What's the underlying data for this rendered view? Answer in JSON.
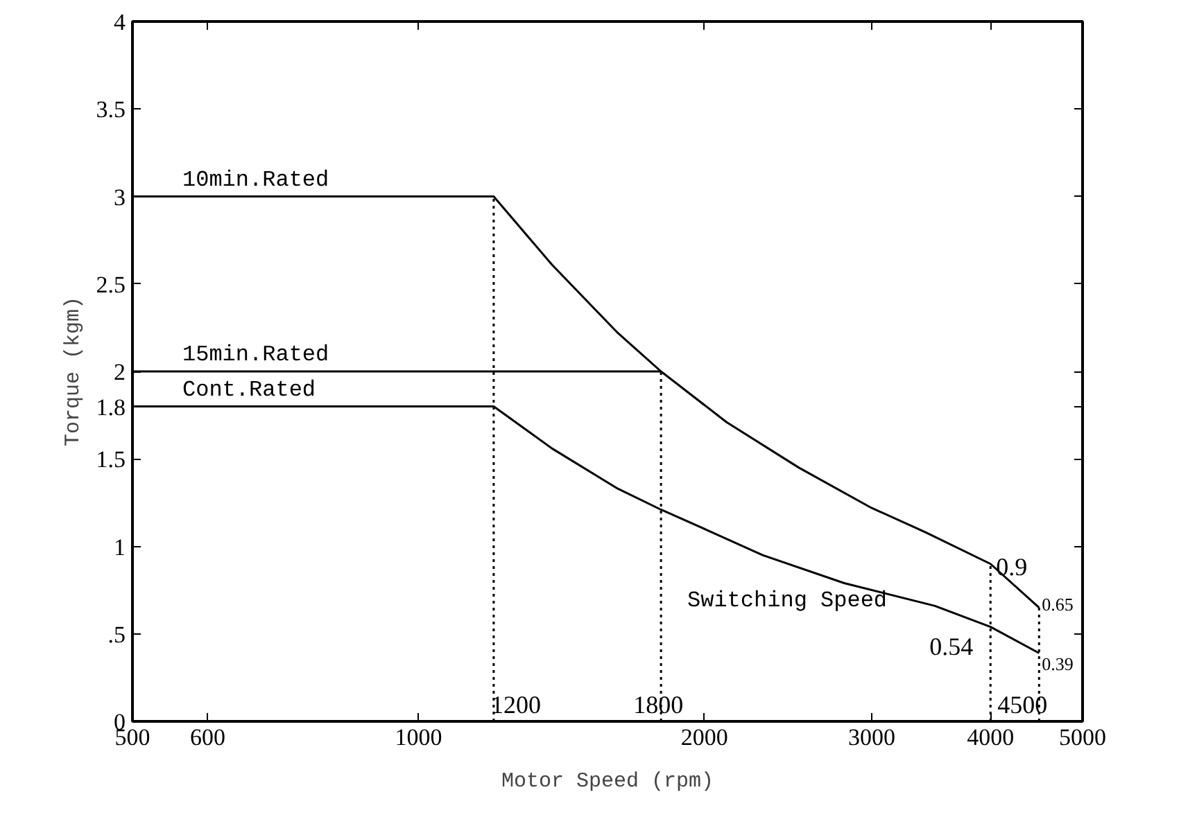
{
  "chart_data": {
    "type": "line",
    "xlabel": "Motor Speed (rpm)",
    "ylabel": "Torque (kgm)",
    "log": "x",
    "xlim": [
      500,
      5000
    ],
    "ylim": [
      0,
      4
    ],
    "xticks": [
      500,
      600,
      1000,
      2000,
      3000,
      4000,
      5000
    ],
    "yticks": [
      0,
      {
        "value": 0.5,
        "label": ".5"
      },
      1,
      1.5,
      1.8,
      2,
      2.5,
      3,
      3.5,
      4
    ],
    "grid": false,
    "marker": "none",
    "series": [
      {
        "name": "10min.Rated",
        "color": "#000000",
        "line_style": "solid",
        "x": [
          500,
          1200,
          1382,
          1621,
          1800,
          2110,
          2514,
          2998,
          3420,
          4000,
          4500
        ],
        "values": [
          3,
          3,
          2.61,
          2.22,
          2.0,
          1.71,
          1.45,
          1.22,
          1.08,
          0.9,
          0.65
        ]
      },
      {
        "name": "15min.Rated",
        "color": "#000000",
        "line_style": "solid",
        "x": [
          500,
          1800
        ],
        "values": [
          2,
          2
        ]
      },
      {
        "name": "Cont.Rated",
        "color": "#000000",
        "line_style": "solid",
        "x": [
          500,
          1200,
          1382,
          1621,
          1800,
          2019,
          2303,
          2806,
          3496,
          4000,
          4500
        ],
        "values": [
          1.8,
          1.8,
          1.56,
          1.33,
          1.21,
          1.09,
          0.95,
          0.79,
          0.66,
          0.54,
          0.39
        ]
      },
      {
        "color": "#000000",
        "line_style": "dotted",
        "x": [
          1200,
          1200
        ],
        "values": [
          0,
          3
        ]
      },
      {
        "color": "#000000",
        "line_style": "dotted",
        "x": [
          1800,
          1800
        ],
        "values": [
          0,
          2
        ]
      },
      {
        "color": "#000000",
        "line_style": "dotted",
        "x": [
          4000,
          4000
        ],
        "values": [
          0,
          0.9
        ]
      },
      {
        "color": "#000000",
        "line_style": "dotted",
        "x": [
          4500,
          4500
        ],
        "values": [
          0,
          0.65
        ]
      }
    ],
    "annotations": [
      "Switching Speed",
      {
        "text": "1200",
        "x": 1200,
        "y": 0
      },
      {
        "text": "1800",
        "x": 1800,
        "y": 0
      },
      {
        "text": "4500",
        "x": 4500,
        "y": 0
      },
      {
        "text": "0.9",
        "x": 4000,
        "y": 0.9
      },
      {
        "text": "0.54",
        "x": 4000,
        "y": 0.54
      },
      {
        "text": "0.65",
        "x": 4500,
        "y": 0.65
      },
      {
        "text": "0.39",
        "x": 4500,
        "y": 0.39
      }
    ]
  }
}
